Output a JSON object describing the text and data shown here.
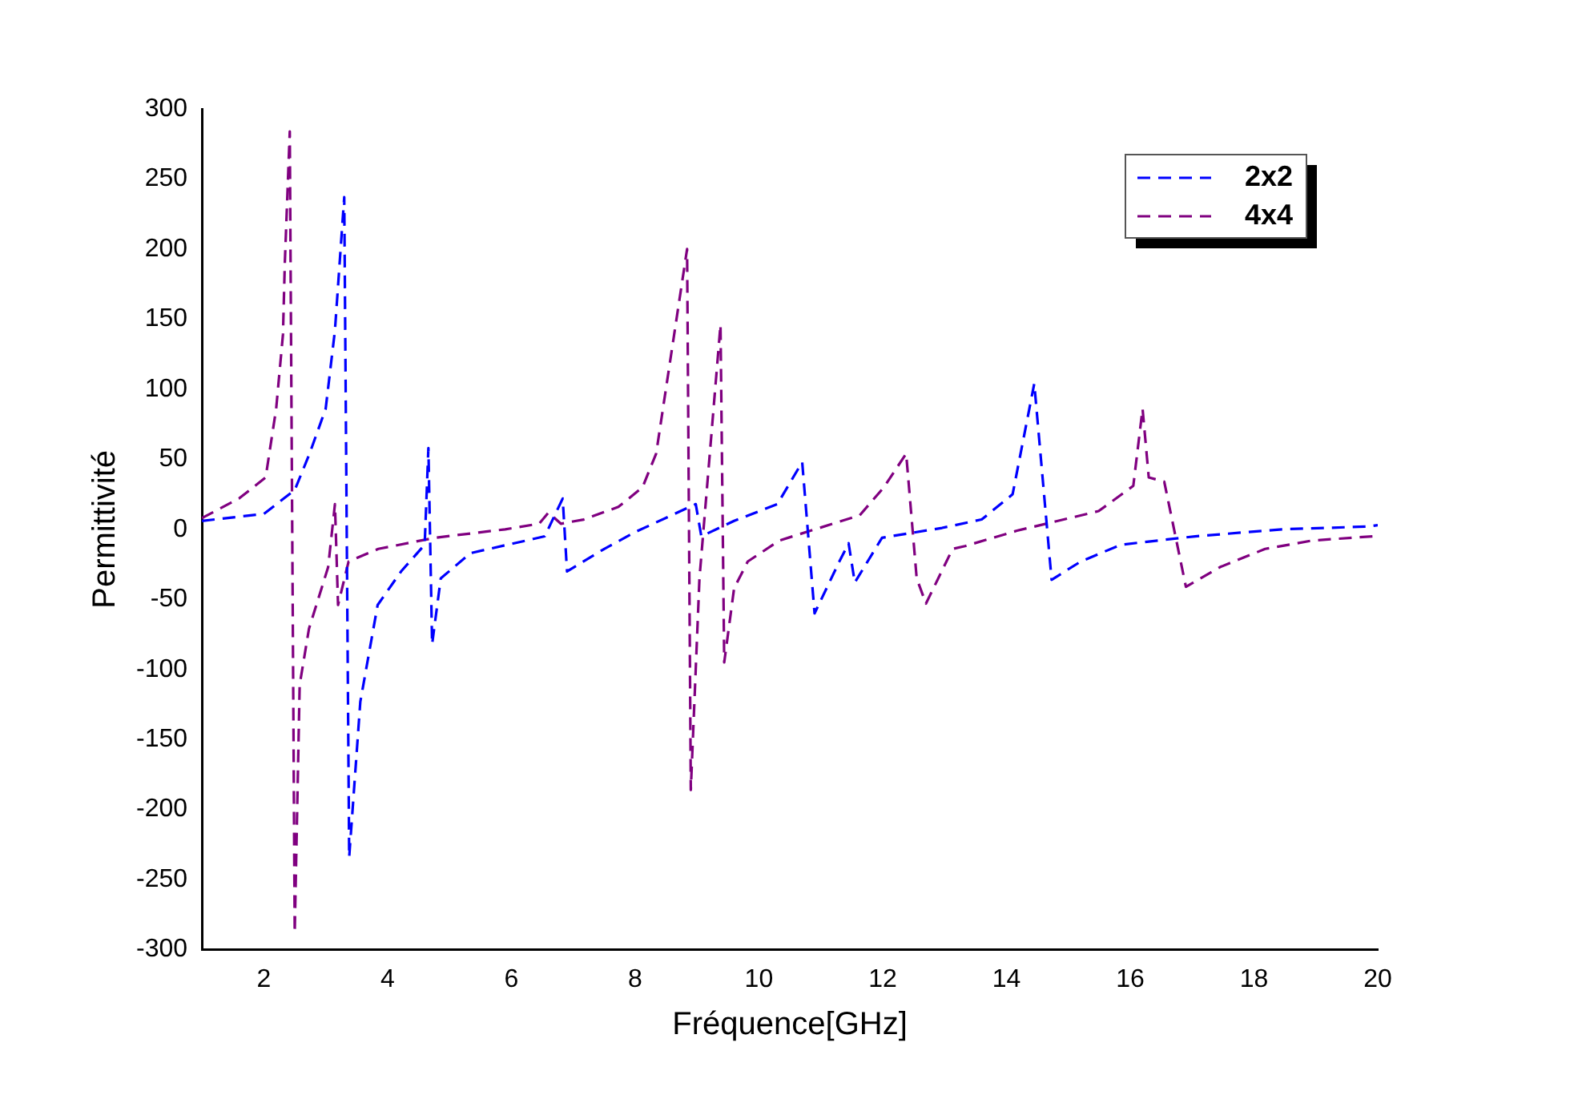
{
  "chart_data": {
    "type": "line",
    "xlabel": "Fréquence[GHz]",
    "ylabel": "Permittivité",
    "xlim": [
      1,
      20
    ],
    "xticks": [
      2,
      4,
      6,
      8,
      10,
      12,
      14,
      16,
      18,
      20
    ],
    "ylim": [
      -300,
      300
    ],
    "yticks": [
      -300,
      -250,
      -200,
      -150,
      -100,
      -50,
      0,
      50,
      100,
      150,
      200,
      250,
      300
    ],
    "grid": false,
    "legend": "top right",
    "line_style": "dashed",
    "marker": "none",
    "series": [
      {
        "name": "2x2",
        "color": "#0000ff",
        "x": [
          1,
          2,
          2.5,
          2.74,
          3.0,
          3.15,
          3.3,
          3.38,
          3.56,
          3.84,
          4.22,
          4.6,
          4.66,
          4.72,
          4.86,
          5.34,
          6.54,
          6.83,
          6.9,
          7.5,
          8.0,
          8.98,
          9.07,
          9.6,
          10.3,
          10.7,
          10.9,
          11.3,
          11.45,
          11.55,
          11.99,
          12.96,
          13.6,
          14.1,
          14.45,
          14.73,
          15.2,
          15.85,
          17.05,
          18.45,
          19.85,
          20
        ],
        "values": [
          6,
          11,
          28,
          54,
          86,
          142,
          237,
          -234,
          -123,
          -54,
          -30,
          -11,
          58,
          -82,
          -35,
          -17,
          -5,
          22,
          -30,
          -14,
          -2,
          18,
          -5,
          6,
          18,
          48,
          -60,
          -23,
          -10,
          -38,
          -6,
          1,
          7,
          25,
          104,
          -36,
          -23,
          -11,
          -5,
          0,
          2,
          3
        ]
      },
      {
        "name": "4x4",
        "color": "#800080",
        "x": [
          1,
          1.6,
          2.03,
          2.2,
          2.31,
          2.34,
          2.42,
          2.5,
          2.58,
          2.73,
          3.04,
          3.15,
          3.2,
          3.37,
          3.85,
          4.77,
          5.9,
          6.45,
          6.6,
          6.8,
          7.17,
          7.73,
          8.12,
          8.34,
          8.84,
          8.9,
          9.04,
          9.38,
          9.44,
          9.6,
          9.82,
          10.33,
          10.98,
          11.63,
          12.02,
          12.38,
          12.55,
          12.7,
          13.13,
          13.33,
          14.17,
          15.49,
          16.05,
          16.2,
          16.3,
          16.55,
          16.9,
          17.45,
          18.18,
          18.94,
          19.92,
          20
        ],
        "values": [
          8,
          22,
          37,
          86,
          139,
          190,
          284,
          -288,
          -111,
          -71,
          -27,
          18,
          -54,
          -23,
          -14,
          -6,
          0,
          4,
          12,
          4,
          7,
          16,
          30,
          54,
          200,
          -186,
          -35,
          146,
          -95,
          -42,
          -23,
          -8,
          1,
          10,
          30,
          54,
          -35,
          -53,
          -14,
          -12,
          -1,
          13,
          31,
          86,
          37,
          34,
          -41,
          -27,
          -14,
          -8,
          -5,
          -4
        ]
      }
    ]
  }
}
